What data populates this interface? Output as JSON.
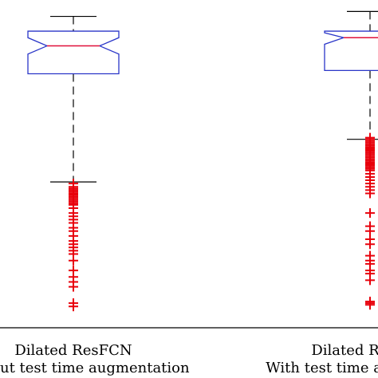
{
  "chart_data": {
    "type": "boxplot",
    "title": "",
    "xlabel": "",
    "ylabel": "",
    "grid": false,
    "notched": true,
    "categories": [
      [
        "Dilated ResFCN",
        "Without test time augmentation"
      ],
      [
        "Dilated ResFCN",
        "With test time augmentation"
      ]
    ],
    "ylim": [
      0.0,
      1.0
    ],
    "boxes": [
      {
        "whisker_high": 0.95,
        "q3": 0.905,
        "median": 0.86,
        "notch_low": 0.835,
        "notch_high": 0.885,
        "q1": 0.775,
        "whisker_low": 0.445,
        "outliers": [
          0.44,
          0.43,
          0.425,
          0.42,
          0.415,
          0.41,
          0.405,
          0.4,
          0.395,
          0.39,
          0.385,
          0.38,
          0.375,
          0.365,
          0.35,
          0.34,
          0.33,
          0.32,
          0.305,
          0.295,
          0.28,
          0.265,
          0.255,
          0.245,
          0.235,
          0.225,
          0.205,
          0.175,
          0.155,
          0.14,
          0.125,
          0.075,
          0.065
        ]
      },
      {
        "whisker_high": 0.965,
        "q3": 0.905,
        "median": 0.885,
        "notch_low": 0.865,
        "notch_high": 0.9,
        "q1": 0.785,
        "whisker_low": 0.575,
        "outliers": [
          0.58,
          0.575,
          0.57,
          0.565,
          0.56,
          0.555,
          0.55,
          0.545,
          0.54,
          0.535,
          0.53,
          0.525,
          0.52,
          0.515,
          0.51,
          0.505,
          0.5,
          0.495,
          0.49,
          0.485,
          0.48,
          0.47,
          0.46,
          0.45,
          0.44,
          0.43,
          0.42,
          0.41,
          0.35,
          0.31,
          0.295,
          0.27,
          0.255,
          0.22,
          0.205,
          0.195,
          0.175,
          0.165,
          0.145,
          0.08,
          0.075,
          0.07
        ]
      }
    ],
    "colors": {
      "box": "#2a36c8",
      "median": "#e0103a",
      "whisker": "#000000",
      "outlier": "#e8000b",
      "axis": "#000000"
    }
  }
}
